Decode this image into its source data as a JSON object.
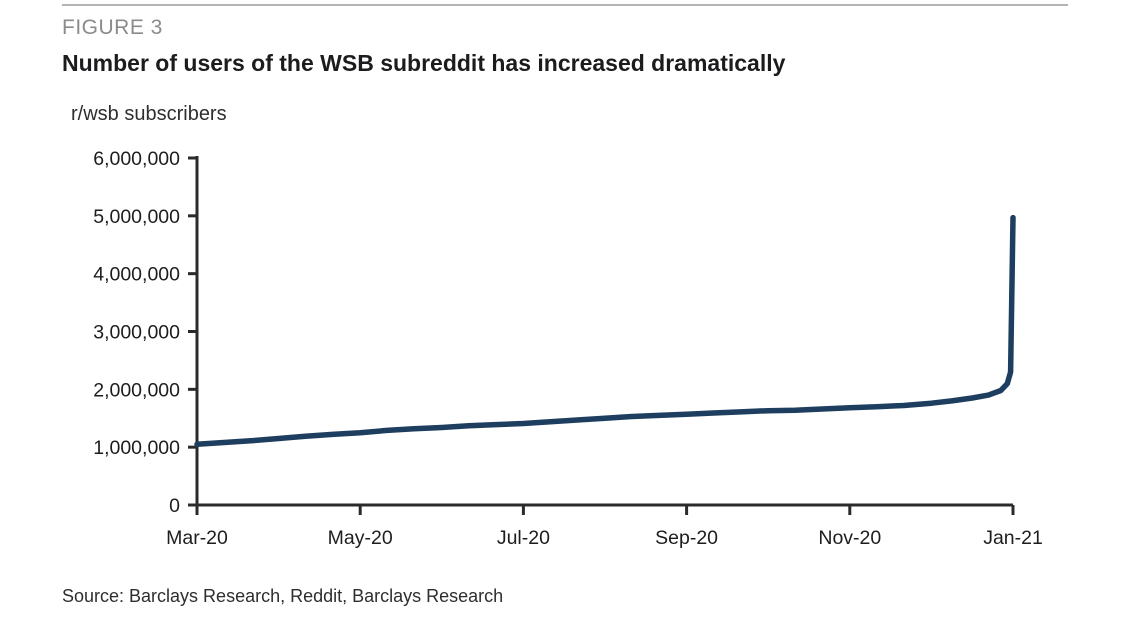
{
  "header": {
    "figure_label": "FIGURE 3",
    "title": "Number of users of the WSB subreddit has increased dramatically"
  },
  "footer": {
    "source": "Source: Barclays Research, Reddit, Barclays Research"
  },
  "chart_data": {
    "type": "line",
    "title": "r/wsb subscribers",
    "xlabel": "",
    "ylabel": "r/wsb subscribers",
    "xlim": [
      0,
      10
    ],
    "ylim": [
      0,
      6000000
    ],
    "grid": false,
    "legend_position": "none",
    "colors": {
      "line": "#1e3e5f",
      "axis": "#2b2b2b",
      "tick_label": "#1d1d1f"
    },
    "x_ticks": [
      {
        "month": 0,
        "label": "Mar-20"
      },
      {
        "month": 2,
        "label": "May-20"
      },
      {
        "month": 4,
        "label": "Jul-20"
      },
      {
        "month": 6,
        "label": "Sep-20"
      },
      {
        "month": 8,
        "label": "Nov-20"
      },
      {
        "month": 10,
        "label": "Jan-21"
      }
    ],
    "y_ticks": [
      {
        "value": 6000000,
        "label": "6,000,000"
      },
      {
        "value": 5000000,
        "label": "5,000,000"
      },
      {
        "value": 4000000,
        "label": "4,000,000"
      },
      {
        "value": 3000000,
        "label": "3,000,000"
      },
      {
        "value": 2000000,
        "label": "2,000,000"
      },
      {
        "value": 1000000,
        "label": "1,000,000"
      },
      {
        "value": 0,
        "label": "0"
      }
    ],
    "series": [
      {
        "name": "r/wsb subscribers",
        "points": [
          [
            0,
            1050000
          ],
          [
            0.33,
            1080000
          ],
          [
            0.66,
            1110000
          ],
          [
            1,
            1150000
          ],
          [
            1.33,
            1190000
          ],
          [
            1.66,
            1220000
          ],
          [
            2,
            1250000
          ],
          [
            2.33,
            1290000
          ],
          [
            2.66,
            1320000
          ],
          [
            3,
            1340000
          ],
          [
            3.33,
            1370000
          ],
          [
            3.66,
            1390000
          ],
          [
            4,
            1410000
          ],
          [
            4.33,
            1440000
          ],
          [
            4.66,
            1470000
          ],
          [
            5,
            1500000
          ],
          [
            5.33,
            1530000
          ],
          [
            5.66,
            1550000
          ],
          [
            6,
            1570000
          ],
          [
            6.33,
            1590000
          ],
          [
            6.66,
            1610000
          ],
          [
            7,
            1630000
          ],
          [
            7.33,
            1640000
          ],
          [
            7.66,
            1660000
          ],
          [
            8,
            1680000
          ],
          [
            8.33,
            1700000
          ],
          [
            8.66,
            1720000
          ],
          [
            9,
            1760000
          ],
          [
            9.25,
            1800000
          ],
          [
            9.5,
            1850000
          ],
          [
            9.7,
            1900000
          ],
          [
            9.85,
            1980000
          ],
          [
            9.93,
            2100000
          ],
          [
            9.97,
            2300000
          ],
          [
            10,
            4970000
          ]
        ]
      }
    ]
  }
}
